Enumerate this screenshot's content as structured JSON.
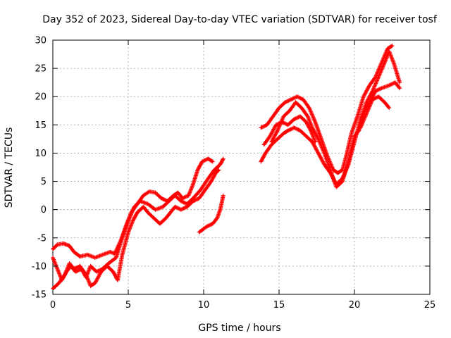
{
  "chart_data": {
    "type": "scatter",
    "title": "Day 352 of 2023, Sidereal Day-to-day VTEC variation (SDTVAR) for receiver tosf",
    "xlabel": "GPS time / hours",
    "ylabel": "SDTVAR / TECUs",
    "xlim": [
      0,
      25
    ],
    "ylim": [
      -15,
      30
    ],
    "xticks": [
      "0",
      "5",
      "10",
      "15",
      "20",
      "25"
    ],
    "yticks": [
      "-15",
      "-10",
      "-5",
      "0",
      "5",
      "10",
      "15",
      "20",
      "25",
      "30"
    ],
    "grid": true,
    "marker": "+",
    "series": [
      {
        "name": "trace-1",
        "color": "#ff0000",
        "points": [
          [
            0.0,
            -7.0
          ],
          [
            0.3,
            -6.2
          ],
          [
            0.7,
            -6.0
          ],
          [
            1.1,
            -6.4
          ],
          [
            1.4,
            -7.5
          ],
          [
            1.8,
            -8.3
          ],
          [
            2.3,
            -8.0
          ],
          [
            2.8,
            -8.5
          ],
          [
            3.3,
            -8.0
          ],
          [
            3.8,
            -7.5
          ],
          [
            4.1,
            -7.8
          ],
          [
            4.5,
            -5.5
          ],
          [
            4.9,
            -2.5
          ],
          [
            5.2,
            -0.5
          ],
          [
            5.6,
            1.0
          ],
          [
            6.0,
            2.5
          ],
          [
            6.4,
            3.2
          ],
          [
            6.8,
            3.0
          ],
          [
            7.2,
            2.0
          ],
          [
            7.6,
            1.5
          ],
          [
            8.0,
            2.5
          ],
          [
            8.3,
            3.0
          ],
          [
            8.6,
            2.0
          ],
          [
            9.0,
            2.5
          ],
          [
            9.3,
            4.5
          ],
          [
            9.6,
            7.0
          ],
          [
            9.9,
            8.5
          ],
          [
            10.3,
            9.0
          ],
          [
            10.6,
            8.5
          ]
        ]
      },
      {
        "name": "trace-2",
        "color": "#ff0000",
        "points": [
          [
            0.0,
            -8.5
          ],
          [
            0.3,
            -10.5
          ],
          [
            0.6,
            -12.5
          ],
          [
            0.9,
            -11.0
          ],
          [
            1.2,
            -10.0
          ],
          [
            1.5,
            -11.0
          ],
          [
            1.9,
            -10.5
          ],
          [
            2.2,
            -12.0
          ],
          [
            2.5,
            -10.0
          ],
          [
            2.9,
            -11.0
          ],
          [
            3.3,
            -10.5
          ],
          [
            3.7,
            -9.5
          ],
          [
            4.2,
            -8.5
          ],
          [
            4.6,
            -5.0
          ],
          [
            5.0,
            -2.0
          ],
          [
            5.4,
            0.5
          ],
          [
            5.8,
            1.5
          ],
          [
            6.3,
            1.0
          ],
          [
            6.8,
            0.0
          ],
          [
            7.3,
            0.5
          ],
          [
            7.7,
            1.5
          ],
          [
            8.1,
            2.5
          ],
          [
            8.5,
            1.5
          ],
          [
            8.9,
            1.0
          ],
          [
            9.3,
            2.0
          ],
          [
            9.8,
            3.5
          ],
          [
            10.3,
            5.5
          ],
          [
            10.7,
            7.0
          ],
          [
            11.1,
            8.0
          ],
          [
            11.3,
            9.0
          ]
        ]
      },
      {
        "name": "trace-3",
        "color": "#ff0000",
        "points": [
          [
            0.0,
            -14.0
          ],
          [
            0.4,
            -13.0
          ],
          [
            0.8,
            -11.5
          ],
          [
            1.1,
            -9.5
          ],
          [
            1.4,
            -10.5
          ],
          [
            1.8,
            -10.0
          ],
          [
            2.2,
            -11.5
          ],
          [
            2.5,
            -13.5
          ],
          [
            2.8,
            -13.0
          ],
          [
            3.2,
            -11.0
          ],
          [
            3.6,
            -10.0
          ],
          [
            4.0,
            -11.0
          ],
          [
            4.3,
            -12.5
          ],
          [
            4.6,
            -8.0
          ],
          [
            5.0,
            -4.0
          ],
          [
            5.3,
            -2.0
          ],
          [
            5.6,
            -0.5
          ],
          [
            6.0,
            0.5
          ],
          [
            6.3,
            -0.5
          ],
          [
            6.7,
            -1.5
          ],
          [
            7.1,
            -2.5
          ],
          [
            7.5,
            -1.5
          ],
          [
            7.8,
            -0.5
          ],
          [
            8.1,
            0.5
          ],
          [
            8.5,
            0.0
          ],
          [
            8.9,
            0.5
          ],
          [
            9.3,
            1.5
          ],
          [
            9.7,
            2.0
          ],
          [
            10.1,
            3.5
          ],
          [
            10.5,
            5.0
          ],
          [
            10.8,
            6.5
          ],
          [
            11.0,
            7.0
          ]
        ]
      },
      {
        "name": "trace-4",
        "color": "#ff0000",
        "points": [
          [
            9.7,
            -4.0
          ],
          [
            10.2,
            -3.0
          ],
          [
            10.6,
            -2.5
          ],
          [
            10.9,
            -1.5
          ],
          [
            11.1,
            0.0
          ],
          [
            11.3,
            2.5
          ]
        ]
      },
      {
        "name": "trace-5",
        "color": "#ff0000",
        "points": [
          [
            13.8,
            8.5
          ],
          [
            14.1,
            10.0
          ],
          [
            14.5,
            11.5
          ],
          [
            14.9,
            12.5
          ],
          [
            15.3,
            13.5
          ],
          [
            15.6,
            14.0
          ],
          [
            16.0,
            14.5
          ],
          [
            16.4,
            14.0
          ],
          [
            16.8,
            13.0
          ],
          [
            17.2,
            12.0
          ],
          [
            17.6,
            10.0
          ],
          [
            18.0,
            8.0
          ],
          [
            18.4,
            6.5
          ],
          [
            18.8,
            4.5
          ],
          [
            19.2,
            5.5
          ],
          [
            19.6,
            8.0
          ],
          [
            20.0,
            12.0
          ],
          [
            20.4,
            16.0
          ],
          [
            20.8,
            19.0
          ],
          [
            21.2,
            21.0
          ],
          [
            21.6,
            23.5
          ],
          [
            22.0,
            26.0
          ],
          [
            22.3,
            28.0
          ],
          [
            22.6,
            26.0
          ],
          [
            23.0,
            22.5
          ]
        ]
      },
      {
        "name": "trace-6",
        "color": "#ff0000",
        "points": [
          [
            13.8,
            14.5
          ],
          [
            14.2,
            15.0
          ],
          [
            14.6,
            16.5
          ],
          [
            15.0,
            18.0
          ],
          [
            15.4,
            19.0
          ],
          [
            15.8,
            19.5
          ],
          [
            16.2,
            20.0
          ],
          [
            16.6,
            19.5
          ],
          [
            17.0,
            18.0
          ],
          [
            17.4,
            15.5
          ],
          [
            17.8,
            12.5
          ],
          [
            18.2,
            9.5
          ],
          [
            18.6,
            7.0
          ],
          [
            18.9,
            6.5
          ],
          [
            19.2,
            7.0
          ],
          [
            19.5,
            10.0
          ],
          [
            19.8,
            13.5
          ],
          [
            20.2,
            16.5
          ],
          [
            20.6,
            20.0
          ],
          [
            21.0,
            22.0
          ],
          [
            21.4,
            23.5
          ],
          [
            21.8,
            26.0
          ],
          [
            22.2,
            28.5
          ],
          [
            22.5,
            29.0
          ]
        ]
      },
      {
        "name": "trace-7",
        "color": "#ff0000",
        "points": [
          [
            14.0,
            11.5
          ],
          [
            14.4,
            13.0
          ],
          [
            14.8,
            15.0
          ],
          [
            15.2,
            15.5
          ],
          [
            15.6,
            15.0
          ],
          [
            16.0,
            16.0
          ],
          [
            16.4,
            16.5
          ],
          [
            16.8,
            15.5
          ],
          [
            17.1,
            14.0
          ],
          [
            17.4,
            12.0
          ]
        ]
      },
      {
        "name": "trace-8",
        "color": "#ff0000",
        "points": [
          [
            14.5,
            12.0
          ],
          [
            14.9,
            14.0
          ],
          [
            15.3,
            16.5
          ],
          [
            15.7,
            17.5
          ],
          [
            16.1,
            19.0
          ],
          [
            16.5,
            18.0
          ],
          [
            16.9,
            16.5
          ],
          [
            17.2,
            14.5
          ],
          [
            17.6,
            12.5
          ],
          [
            18.0,
            10.0
          ],
          [
            18.4,
            7.0
          ],
          [
            18.8,
            4.0
          ],
          [
            19.2,
            5.0
          ],
          [
            19.6,
            8.5
          ],
          [
            20.0,
            13.0
          ],
          [
            20.3,
            14.0
          ],
          [
            20.7,
            17.5
          ],
          [
            21.0,
            19.0
          ],
          [
            21.4,
            21.0
          ],
          [
            21.8,
            21.5
          ],
          [
            22.3,
            22.0
          ],
          [
            22.7,
            22.5
          ],
          [
            23.0,
            21.5
          ]
        ]
      },
      {
        "name": "trace-9",
        "color": "#ff0000",
        "points": [
          [
            20.4,
            14.5
          ],
          [
            20.8,
            17.0
          ],
          [
            21.2,
            19.5
          ],
          [
            21.6,
            20.0
          ],
          [
            22.0,
            19.0
          ],
          [
            22.3,
            18.0
          ]
        ]
      }
    ]
  }
}
